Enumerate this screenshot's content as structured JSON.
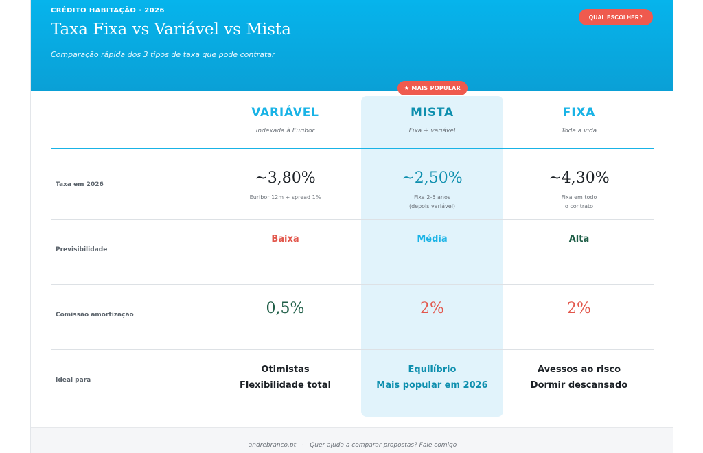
{
  "header": {
    "eyebrow": "CRÉDITO HABITAÇÃO · 2026",
    "title": "Taxa Fixa vs Variável vs Mista",
    "subtitle": "Comparação rápida dos 3 tipos de taxa que pode contratar",
    "cta_label": "QUAL ESCOLHER?"
  },
  "badge": {
    "icon": "star-icon",
    "star": "★",
    "label": "MAIS POPULAR"
  },
  "columns": [
    {
      "name": "VARIÁVEL",
      "desc": "Indexada à Euribor"
    },
    {
      "name": "MISTA",
      "desc": "Fixa + variável"
    },
    {
      "name": "FIXA",
      "desc": "Toda a vida"
    }
  ],
  "rows": {
    "rate": {
      "label": "Taxa em 2026",
      "values": [
        "~3,80%",
        "~2,50%",
        "~4,30%"
      ],
      "notes": [
        [
          "Euribor 12m + spread 1%"
        ],
        [
          "Fixa 2-5 anos",
          "(depois variável)"
        ],
        [
          "Fixa em todo",
          "o contrato"
        ]
      ]
    },
    "predictability": {
      "label": "Previsibilidade",
      "values": [
        "Baixa",
        "Média",
        "Alta"
      ]
    },
    "fee": {
      "label": "Comissão amortização",
      "values": [
        "0,5%",
        "2%",
        "2%"
      ]
    },
    "ideal": {
      "label": "Ideal para",
      "values": [
        [
          "Otimistas",
          "Flexibilidade total"
        ],
        [
          "Equilíbrio",
          "Mais popular em 2026"
        ],
        [
          "Avessos ao risco",
          "Dormir descansado"
        ]
      ]
    }
  },
  "footer": {
    "site": "andrebranco.pt",
    "separator": "·",
    "text": "Quer ajuda a comparar propostas? Fale comigo"
  },
  "colors": {
    "primary": "#06b4ec",
    "accent": "#ef5a4e",
    "green": "#1f5e47",
    "teal": "#0e8fae",
    "highlight": "#e1f3fb"
  }
}
